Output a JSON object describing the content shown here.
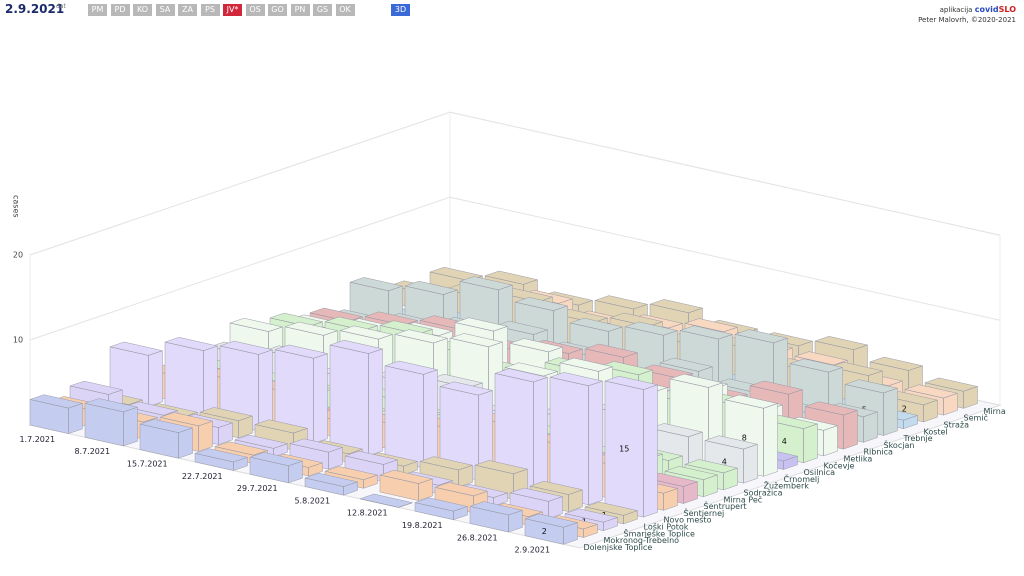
{
  "header": {
    "date": "2.9.2021",
    "date_hint": "dat",
    "menu": [
      "PM",
      "PD",
      "KO",
      "SA",
      "ZA",
      "PS",
      "JV*",
      "OS",
      "GO",
      "PN",
      "GS",
      "OK"
    ],
    "active": "JV*",
    "mode": "3D",
    "app_prefix": "aplikacija",
    "app_name_a": "covid",
    "app_name_b": "SLO",
    "author": "Peter Malovrh, ©2020-2021"
  },
  "chart_data": {
    "type": "bar3d",
    "y_label": "cases",
    "categories": [
      "1.7.2021",
      "8.7.2021",
      "15.7.2021",
      "22.7.2021",
      "29.7.2021",
      "5.8.2021",
      "12.8.2021",
      "19.8.2021",
      "26.8.2021",
      "2.9.2021"
    ],
    "ylim": [
      0,
      20
    ],
    "yticks": [
      10,
      20
    ],
    "series": [
      {
        "name": "Dolenjske Toplice",
        "color": "#c4cdf0",
        "values": [
          3,
          4,
          3,
          1,
          2,
          1,
          0,
          1,
          2,
          2
        ]
      },
      {
        "name": "Mokronog-Trebelno",
        "color": "#f8cfae",
        "values": [
          2,
          2,
          3,
          1,
          1,
          1,
          2,
          2,
          1,
          1
        ]
      },
      {
        "name": "Šmarješke Toplice",
        "color": "#dcd4f6",
        "values": [
          3,
          2,
          2,
          1,
          2,
          2,
          1,
          1,
          2,
          1
        ]
      },
      {
        "name": "Loški Potok",
        "color": "#e0d4b4",
        "values": [
          1,
          1,
          2,
          2,
          1,
          1,
          2,
          3,
          2,
          1
        ]
      },
      {
        "name": "Novo mesto",
        "color": "#e2dafa",
        "values": [
          6,
          8,
          9,
          10,
          12,
          11,
          10,
          13,
          14,
          15
        ]
      },
      {
        "name": "Šentjernej",
        "color": "#f8cfae",
        "values": [
          3,
          4,
          4,
          2,
          3,
          4,
          6,
          5,
          4,
          2
        ]
      },
      {
        "name": "Šentrupert",
        "color": "#e6b8c8",
        "values": [
          1,
          2,
          2,
          1,
          1,
          1,
          2,
          2,
          3,
          2
        ]
      },
      {
        "name": "Mirna Peč",
        "color": "#d4f0cc",
        "values": [
          1,
          1,
          2,
          1,
          2,
          2,
          1,
          1,
          3,
          2
        ]
      },
      {
        "name": "Sodražica",
        "color": "#d4f0cc",
        "values": [
          1,
          1,
          1,
          2,
          1,
          1,
          2,
          1,
          2,
          2
        ]
      },
      {
        "name": "Žužemberk",
        "color": "#e4e8ea",
        "values": [
          2,
          3,
          2,
          3,
          4,
          2,
          3,
          5,
          4,
          4
        ]
      },
      {
        "name": "Črnomelj",
        "color": "#eef8ec",
        "values": [
          4,
          5,
          6,
          7,
          8,
          6,
          8,
          7,
          9,
          8
        ]
      },
      {
        "name": "Osilnica",
        "color": "#c8c2f2",
        "values": [
          0,
          1,
          0,
          1,
          1,
          0,
          1,
          1,
          0,
          1
        ]
      },
      {
        "name": "Kočevje",
        "color": "#d4f0cc",
        "values": [
          3,
          4,
          5,
          4,
          3,
          5,
          6,
          4,
          5,
          4
        ]
      },
      {
        "name": "Metlika",
        "color": "#eef8ec",
        "values": [
          2,
          3,
          4,
          6,
          5,
          4,
          3,
          5,
          4,
          3
        ]
      },
      {
        "name": "Ribnica",
        "color": "#e6b8b8",
        "values": [
          2,
          3,
          4,
          3,
          4,
          5,
          4,
          3,
          5,
          4
        ]
      },
      {
        "name": "Škocjan",
        "color": "#cdd9d6",
        "values": [
          1,
          2,
          3,
          4,
          3,
          2,
          4,
          3,
          2,
          3
        ]
      },
      {
        "name": "Trebnje",
        "color": "#cdd9d6",
        "values": [
          4,
          5,
          7,
          6,
          5,
          6,
          7,
          8,
          6,
          5
        ]
      },
      {
        "name": "Kostel",
        "color": "#c2dced",
        "values": [
          0,
          1,
          1,
          0,
          1,
          0,
          1,
          0,
          1,
          1
        ]
      },
      {
        "name": "Straža",
        "color": "#e0d4b4",
        "values": [
          2,
          3,
          4,
          3,
          4,
          3,
          4,
          3,
          4,
          2
        ]
      },
      {
        "name": "Semič",
        "color": "#f8d8c0",
        "values": [
          1,
          2,
          3,
          2,
          3,
          4,
          3,
          3,
          2,
          2
        ]
      },
      {
        "name": "Mirna",
        "color": "#e0d4b4",
        "values": [
          2,
          3,
          2,
          3,
          4,
          3,
          3,
          4,
          3,
          2
        ]
      }
    ]
  }
}
